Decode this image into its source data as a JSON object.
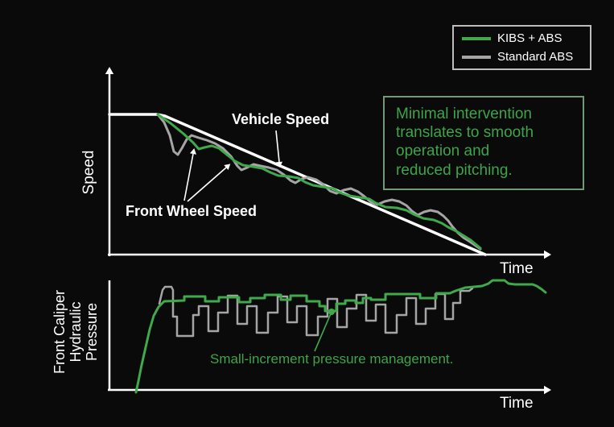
{
  "palette": {
    "background": "#0a0a0a",
    "kibs_green": "#3fa94c",
    "standard_gray": "#a5a5a5",
    "line_white": "#ffffff",
    "note_border_green": "#739a76",
    "note_text_green": "#3fa34a"
  },
  "legend": {
    "items": [
      {
        "label": "KIBS + ABS",
        "color": "#3fa94c"
      },
      {
        "label": "Standard ABS",
        "color": "#a5a5a5"
      }
    ]
  },
  "note_box": {
    "text": "Minimal intervention\ntranslates to smooth\noperation and\nreduced pitching."
  },
  "labels": {
    "vehicle_speed": "Vehicle Speed",
    "front_wheel_speed": "Front Wheel Speed",
    "speed_axis": "Speed",
    "time_top": "Time",
    "time_bottom": "Time",
    "caliper_axis": "Front Caliper\nHydraulic\nPressure",
    "pressure_note": "Small-increment pressure management."
  },
  "chart_data": [
    {
      "type": "line",
      "title": "Speed vs Time (braking comparison)",
      "xlabel": "Time",
      "ylabel": "Speed",
      "grid": false,
      "legend_position": "top-right",
      "axes": {
        "x": {
          "from": [
            134,
            316
          ],
          "to": [
            676,
            316
          ],
          "arrow": true
        },
        "y": {
          "from": [
            136,
            318
          ],
          "to": [
            136,
            92
          ],
          "arrow": true
        }
      },
      "series": [
        {
          "id": "vehicle-speed-line",
          "name": "Vehicle Speed",
          "color": "#ffffff",
          "width": 3.5,
          "points": [
            [
              136,
              142
            ],
            [
              195,
              142
            ],
            [
              205,
              144
            ],
            [
              603,
              316
            ]
          ]
        },
        {
          "id": "front-wheel-speed-standard-abs",
          "name": "Front Wheel Speed (Standard ABS)",
          "color": "#a5a5a5",
          "width": 3,
          "points": [
            [
              196,
              142
            ],
            [
              204,
              152
            ],
            [
              211,
              168
            ],
            [
              216,
              188
            ],
            [
              221,
              192
            ],
            [
              226,
              184
            ],
            [
              232,
              173
            ],
            [
              238,
              168
            ],
            [
              247,
              171
            ],
            [
              257,
              174
            ],
            [
              267,
              178
            ],
            [
              277,
              184
            ],
            [
              287,
              194
            ],
            [
              295,
              206
            ],
            [
              300,
              211
            ],
            [
              307,
              208
            ],
            [
              315,
              204
            ],
            [
              324,
              206
            ],
            [
              334,
              208
            ],
            [
              344,
              211
            ],
            [
              353,
              217
            ],
            [
              361,
              224
            ],
            [
              367,
              227
            ],
            [
              375,
              222
            ],
            [
              383,
              220
            ],
            [
              393,
              223
            ],
            [
              402,
              229
            ],
            [
              410,
              237
            ],
            [
              418,
              240
            ],
            [
              427,
              236
            ],
            [
              436,
              234
            ],
            [
              445,
              238
            ],
            [
              453,
              244
            ],
            [
              461,
              251
            ],
            [
              469,
              254
            ],
            [
              478,
              250
            ],
            [
              487,
              248
            ],
            [
              496,
              250
            ],
            [
              505,
              255
            ],
            [
              512,
              262
            ],
            [
              519,
              267
            ],
            [
              527,
              263
            ],
            [
              535,
              261
            ],
            [
              544,
              263
            ],
            [
              551,
              268
            ],
            [
              557,
              274
            ],
            [
              562,
              281
            ],
            [
              569,
              289
            ],
            [
              576,
              295
            ],
            [
              584,
              300
            ],
            [
              597,
              309
            ]
          ]
        },
        {
          "id": "front-wheel-speed-kibs-abs",
          "name": "Front Wheel Speed (KIBS + ABS)",
          "color": "#3fa94c",
          "width": 3,
          "points": [
            [
              196,
              142
            ],
            [
              212,
              153
            ],
            [
              228,
              166
            ],
            [
              240,
              177
            ],
            [
              247,
              185
            ],
            [
              254,
              183
            ],
            [
              263,
              181
            ],
            [
              272,
              184
            ],
            [
              282,
              192
            ],
            [
              292,
              200
            ],
            [
              302,
              205
            ],
            [
              315,
              207
            ],
            [
              326,
              209
            ],
            [
              336,
              214
            ],
            [
              346,
              218
            ],
            [
              359,
              219
            ],
            [
              371,
              221
            ],
            [
              379,
              226
            ],
            [
              389,
              230
            ],
            [
              402,
              232
            ],
            [
              414,
              234
            ],
            [
              422,
              239
            ],
            [
              434,
              243
            ],
            [
              447,
              245
            ],
            [
              459,
              247
            ],
            [
              467,
              252
            ],
            [
              479,
              257
            ],
            [
              493,
              258
            ],
            [
              505,
              261
            ],
            [
              514,
              266
            ],
            [
              526,
              271
            ],
            [
              539,
              273
            ],
            [
              549,
              277
            ],
            [
              557,
              282
            ],
            [
              567,
              287
            ],
            [
              577,
              293
            ],
            [
              585,
              298
            ],
            [
              597,
              308
            ]
          ]
        }
      ],
      "pointer_arrows": [
        {
          "id": "vehicle-speed-arrow",
          "from": [
            343,
            162
          ],
          "to": [
            347,
            201
          ],
          "color": "#ffffff"
        },
        {
          "id": "front-wheel-arrow-left",
          "from": [
            229,
            249
          ],
          "to": [
            240,
            191
          ],
          "color": "#ffffff"
        },
        {
          "id": "front-wheel-arrow-right",
          "from": [
            233,
            250
          ],
          "to": [
            281,
            208
          ],
          "color": "#ffffff"
        }
      ]
    },
    {
      "type": "line",
      "title": "Front Caliper Hydraulic Pressure vs Time",
      "xlabel": "Time",
      "ylabel": "Front Caliper Hydraulic Pressure",
      "grid": false,
      "axes": {
        "x": {
          "from": [
            134,
            484
          ],
          "to": [
            676,
            484
          ],
          "arrow": true
        },
        "y": {
          "from": [
            136,
            485
          ],
          "to": [
            136,
            348
          ],
          "arrow": false
        }
      },
      "series": [
        {
          "id": "pressure-standard-abs",
          "name": "Caliper Pressure (Standard ABS)",
          "color": "#a5a5a5",
          "width": 2.5,
          "points": [
            [
              198,
              377
            ],
            [
              202,
              360
            ],
            [
              205,
              356
            ],
            [
              213,
              356
            ],
            [
              215,
              360
            ],
            [
              215,
              393
            ],
            [
              220,
              393
            ],
            [
              220,
              417
            ],
            [
              240,
              417
            ],
            [
              240,
              391
            ],
            [
              247,
              391
            ],
            [
              247,
              380
            ],
            [
              259,
              380
            ],
            [
              259,
              411
            ],
            [
              271,
              411
            ],
            [
              271,
              388
            ],
            [
              283,
              388
            ],
            [
              283,
              367
            ],
            [
              295,
              367
            ],
            [
              295,
              402
            ],
            [
              307,
              402
            ],
            [
              307,
              380
            ],
            [
              319,
              380
            ],
            [
              319,
              413
            ],
            [
              333,
              413
            ],
            [
              333,
              388
            ],
            [
              345,
              388
            ],
            [
              345,
              368
            ],
            [
              357,
              368
            ],
            [
              357,
              400
            ],
            [
              369,
              400
            ],
            [
              369,
              380
            ],
            [
              381,
              380
            ],
            [
              381,
              416
            ],
            [
              395,
              416
            ],
            [
              395,
              393
            ],
            [
              407,
              393
            ],
            [
              407,
              371
            ],
            [
              419,
              371
            ],
            [
              419,
              406
            ],
            [
              431,
              406
            ],
            [
              431,
              383
            ],
            [
              443,
              383
            ],
            [
              443,
              366
            ],
            [
              455,
              366
            ],
            [
              455,
              398
            ],
            [
              467,
              398
            ],
            [
              467,
              378
            ],
            [
              479,
              378
            ],
            [
              479,
              413
            ],
            [
              493,
              413
            ],
            [
              493,
              391
            ],
            [
              505,
              391
            ],
            [
              505,
              370
            ],
            [
              517,
              370
            ],
            [
              517,
              402
            ],
            [
              529,
              402
            ],
            [
              529,
              383
            ],
            [
              541,
              383
            ],
            [
              541,
              365
            ],
            [
              553,
              365
            ],
            [
              553,
              396
            ],
            [
              563,
              396
            ],
            [
              563,
              376
            ],
            [
              572,
              376
            ],
            [
              572,
              361
            ],
            [
              583,
              361
            ],
            [
              587,
              358
            ]
          ]
        },
        {
          "id": "pressure-kibs-abs",
          "name": "Caliper Pressure (KIBS + ABS)",
          "color": "#3fa94c",
          "width": 3,
          "points": [
            [
              169,
              487
            ],
            [
              172,
              473
            ],
            [
              176,
              453
            ],
            [
              181,
              431
            ],
            [
              186,
              409
            ],
            [
              191,
              392
            ],
            [
              197,
              381
            ],
            [
              204,
              374
            ],
            [
              229,
              373
            ],
            [
              229,
              368
            ],
            [
              255,
              368
            ],
            [
              255,
              374
            ],
            [
              272,
              374
            ],
            [
              272,
              369
            ],
            [
              297,
              369
            ],
            [
              297,
              375
            ],
            [
              311,
              375
            ],
            [
              311,
              370
            ],
            [
              329,
              370
            ],
            [
              329,
              366
            ],
            [
              349,
              366
            ],
            [
              349,
              372
            ],
            [
              361,
              372
            ],
            [
              361,
              367
            ],
            [
              381,
              367
            ],
            [
              381,
              374
            ],
            [
              397,
              374
            ],
            [
              397,
              380
            ],
            [
              404,
              380
            ],
            [
              404,
              386
            ],
            [
              418,
              386
            ],
            [
              418,
              377
            ],
            [
              429,
              377
            ],
            [
              429,
              373
            ],
            [
              442,
              373
            ],
            [
              442,
              376
            ],
            [
              451,
              376
            ],
            [
              451,
              370
            ],
            [
              461,
              370
            ],
            [
              461,
              372
            ],
            [
              479,
              372
            ],
            [
              479,
              365
            ],
            [
              522,
              365
            ],
            [
              522,
              370
            ],
            [
              542,
              370
            ],
            [
              542,
              364
            ],
            [
              559,
              364
            ],
            [
              566,
              361
            ],
            [
              578,
              357
            ],
            [
              589,
              356
            ],
            [
              599,
              355
            ],
            [
              607,
              352
            ],
            [
              612,
              348
            ],
            [
              627,
              348
            ],
            [
              632,
              352
            ],
            [
              640,
              353
            ],
            [
              662,
              353
            ],
            [
              667,
              355
            ],
            [
              673,
              359
            ],
            [
              678,
              363
            ]
          ]
        }
      ],
      "callout": {
        "id": "pressure-note-callout",
        "dot": [
          412,
          387
        ],
        "dot_radius": 4,
        "line_to": [
          391,
          436
        ],
        "color": "#3fa94c"
      }
    }
  ]
}
